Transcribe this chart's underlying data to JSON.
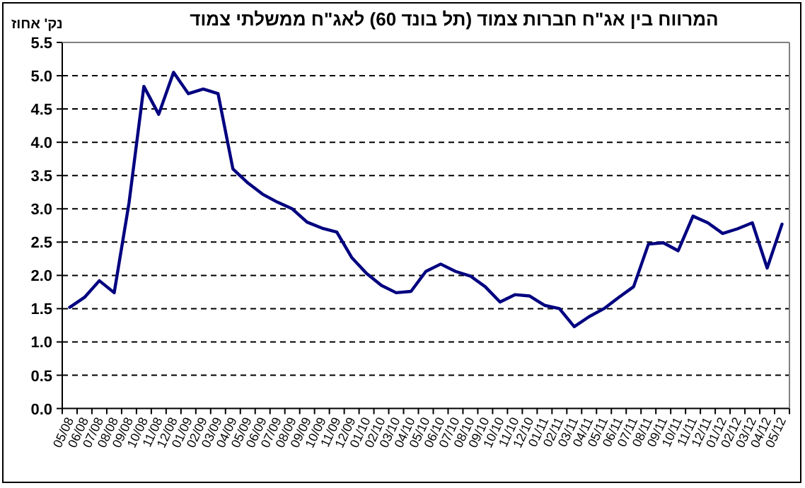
{
  "chart_data": {
    "type": "line",
    "title": "המרווח בין אג\"ח חברות צמוד (תל בונד 60) לאג\"ח ממשלתי צמוד",
    "ylabel": "נק' אחוז",
    "categories": [
      "05/08",
      "06/08",
      "07/08",
      "08/08",
      "09/08",
      "10/08",
      "11/08",
      "12/08",
      "01/09",
      "02/09",
      "03/09",
      "04/09",
      "05/09",
      "06/09",
      "07/09",
      "08/09",
      "09/09",
      "10/09",
      "11/09",
      "12/09",
      "01/10",
      "02/10",
      "03/10",
      "04/10",
      "05/10",
      "06/10",
      "07/10",
      "08/10",
      "09/10",
      "10/10",
      "11/10",
      "12/10",
      "01/11",
      "02/11",
      "03/11",
      "04/11",
      "05/11",
      "06/11",
      "07/11",
      "08/11",
      "09/11",
      "10/11",
      "11/11",
      "12/11",
      "01/12",
      "02/12",
      "03/12",
      "04/12",
      "05/12"
    ],
    "series": [
      {
        "color": "#000080",
        "values": [
          1.52,
          1.67,
          1.92,
          1.74,
          3.09,
          4.84,
          4.42,
          5.05,
          4.73,
          4.8,
          4.73,
          3.6,
          3.39,
          3.22,
          3.1,
          3.0,
          2.8,
          2.71,
          2.65,
          2.27,
          2.03,
          1.85,
          1.74,
          1.76,
          2.06,
          2.17,
          2.06,
          1.99,
          1.83,
          1.6,
          1.71,
          1.69,
          1.55,
          1.5,
          1.23,
          1.38,
          1.5,
          1.67,
          1.83,
          2.47,
          2.49,
          2.37,
          2.89,
          2.79,
          2.63,
          2.7,
          2.79,
          2.11,
          2.77
        ]
      }
    ],
    "ylim": [
      0,
      5.5
    ],
    "yticks": [
      {
        "value": 0,
        "label": "0.0"
      },
      {
        "value": 0.5,
        "label": "0.5"
      },
      {
        "value": 1,
        "label": "1.0"
      },
      {
        "value": 1.5,
        "label": "1.5"
      },
      {
        "value": 2,
        "label": "2.0"
      },
      {
        "value": 2.5,
        "label": "2.5"
      },
      {
        "value": 3,
        "label": "3.0"
      },
      {
        "value": 3.5,
        "label": "3.5"
      },
      {
        "value": 4,
        "label": "4.0"
      },
      {
        "value": 4.5,
        "label": "4.5"
      },
      {
        "value": 5,
        "label": "5.0"
      },
      {
        "value": 5.5,
        "label": "5.5"
      }
    ],
    "grid": "y",
    "line_style": "solid"
  }
}
